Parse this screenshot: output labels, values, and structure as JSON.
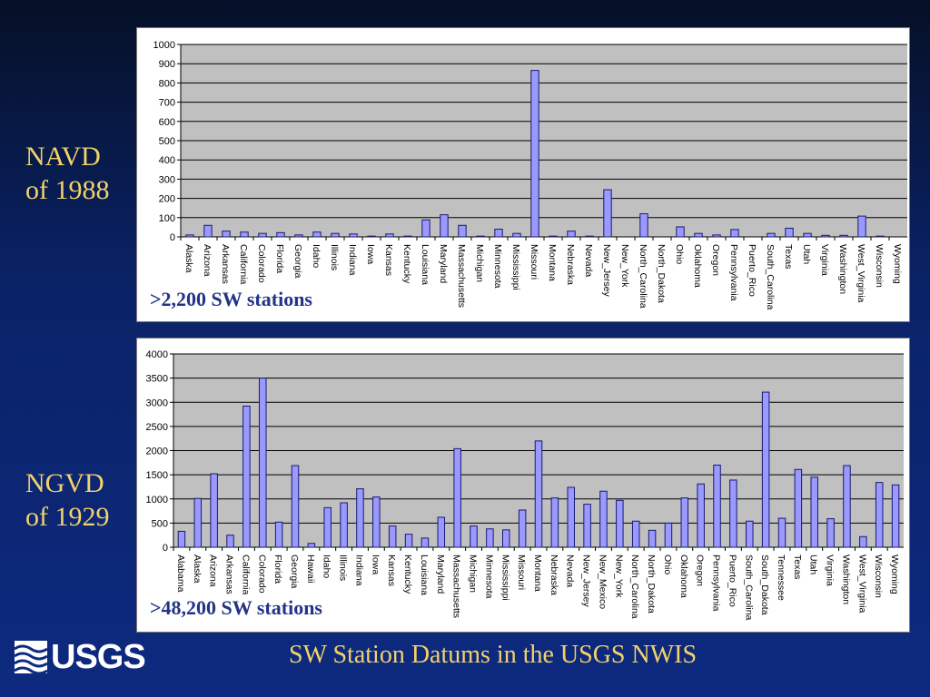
{
  "labels": {
    "navd": [
      "NAVD",
      "of 1988"
    ],
    "ngvd": [
      "NGVD",
      "of 1929"
    ]
  },
  "captions": {
    "navd": ">2,200 SW stations",
    "ngvd": ">48,200 SW stations"
  },
  "footer": {
    "logo_text": "USGS",
    "title": "SW Station Datums in the USGS NWIS"
  },
  "colors": {
    "bar_fill": "#9999ff",
    "bar_stroke": "#1a1a6e",
    "plot_bg": "#c0c0c0",
    "label_gold": "#f3d26a",
    "caption_blue": "#22348a"
  },
  "chart_data": [
    {
      "type": "bar",
      "grid": true,
      "ylim": [
        0,
        1000
      ],
      "yticks": [
        "0",
        "100",
        "200",
        "300",
        "400",
        "500",
        "600",
        "700",
        "800",
        "900",
        "1000"
      ],
      "categories": [
        "Alaska",
        "Arizona",
        "Arkansas",
        "California",
        "Colorado",
        "Florida",
        "Georgia",
        "Idaho",
        "Illinois",
        "Indiana",
        "Iowa",
        "Kansas",
        "Kentucky",
        "Louisiana",
        "Maryland",
        "Massachusetts",
        "Michigan",
        "Minnesota",
        "Mississippi",
        "Missouri",
        "Montana",
        "Nebraska",
        "Nevada",
        "New_Jersey",
        "New_York",
        "North_Carolina",
        "North_Dakota",
        "Ohio",
        "Oklahoma",
        "Oregon",
        "Pennsylvania",
        "Puerto_Rico",
        "South_Carolina",
        "Texas",
        "Utah",
        "Virginia",
        "Washington",
        "West_Virginia",
        "Wisconsin",
        "Wyoming"
      ],
      "values": [
        10,
        60,
        30,
        25,
        18,
        22,
        10,
        25,
        18,
        15,
        4,
        15,
        4,
        88,
        115,
        60,
        4,
        40,
        18,
        865,
        4,
        30,
        4,
        245,
        0,
        120,
        0,
        52,
        18,
        10,
        38,
        0,
        18,
        45,
        18,
        8,
        8,
        108,
        4,
        0
      ]
    },
    {
      "type": "bar",
      "grid": true,
      "ylim": [
        0,
        4000
      ],
      "yticks": [
        "0",
        "500",
        "1000",
        "1500",
        "2000",
        "2500",
        "3000",
        "3500",
        "4000"
      ],
      "categories": [
        "Alabama",
        "Alaska",
        "Arizona",
        "Arkansas",
        "California",
        "Colorado",
        "Florida",
        "Georgia",
        "Hawaii",
        "Idaho",
        "Illinois",
        "Indiana",
        "Iowa",
        "Kansas",
        "Kentucky",
        "Louisiana",
        "Maryland",
        "Massachusetts",
        "Michigan",
        "Minnesota",
        "Mississippi",
        "Missouri",
        "Montana",
        "Nebraska",
        "Nevada",
        "New_Jersey",
        "New_Mexico",
        "New_York",
        "North_Carolina",
        "North_Dakota",
        "Ohio",
        "Oklahoma",
        "Oregon",
        "Pennsylvania",
        "Puerto_Rico",
        "South_Carolina",
        "South_Dakota",
        "Tennessee",
        "Texas",
        "Utah",
        "Virginia",
        "Washington",
        "West_Virginia",
        "Wisconsin",
        "Wyoming"
      ],
      "values": [
        330,
        1010,
        1520,
        250,
        2920,
        3500,
        520,
        1690,
        80,
        820,
        920,
        1210,
        1040,
        440,
        270,
        190,
        620,
        2040,
        440,
        380,
        360,
        770,
        2200,
        1020,
        1240,
        890,
        1160,
        970,
        540,
        350,
        500,
        1020,
        1310,
        1700,
        1390,
        540,
        3210,
        600,
        1610,
        1450,
        590,
        1690,
        220,
        1340,
        1290
      ]
    }
  ]
}
